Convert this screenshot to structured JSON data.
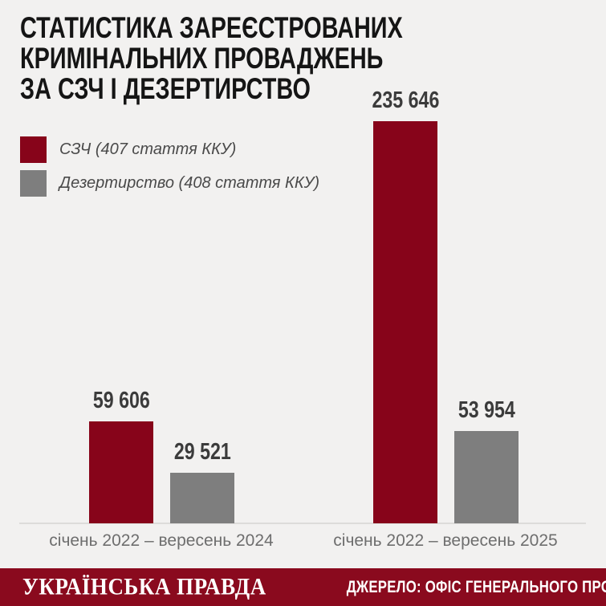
{
  "title": {
    "lines": [
      "СТАТИСТИКА ЗАРЕЄСТРОВАНИХ",
      "КРИМІНАЛЬНИХ ПРОВАДЖЕНЬ",
      "ЗА СЗЧ І ДЕЗЕРТИРСТВО"
    ]
  },
  "colors": {
    "background": "#f2f1f0",
    "accent_red": "#87041a",
    "neutral_gray": "#7e7e7e",
    "footer_red": "#8a0a1e",
    "axis_line": "#dddcda",
    "value_text": "#3b3b3b",
    "category_text": "#6e6e6e"
  },
  "chart_data": {
    "type": "bar",
    "title": "Статистика зареєстрованих кримінальних проваджень за СЗЧ і дезертирство",
    "categories": [
      "січень 2022 – вересень 2024",
      "січень 2022 – вересень 2025"
    ],
    "series": [
      {
        "name": "СЗЧ (407 стаття ККУ)",
        "color": "#87041a",
        "values": [
          59606,
          235646
        ],
        "display_values": [
          "59 606",
          "235 646"
        ]
      },
      {
        "name": "Дезертирство (408 стаття ККУ)",
        "color": "#7e7e7e",
        "values": [
          29521,
          53954
        ],
        "display_values": [
          "29 521",
          "53 954"
        ]
      }
    ],
    "xlabel": "",
    "ylabel": "",
    "ylim": [
      0,
      235646
    ],
    "grid": false,
    "legend_position": "top-left",
    "value_labels_shown": true
  },
  "footer": {
    "logo": "УКРАЇНСЬКА ПРАВДА",
    "source": "ДЖЕРЕЛО: ОФІС ГЕНЕРАЛЬНОГО ПРОКУРОРА"
  }
}
